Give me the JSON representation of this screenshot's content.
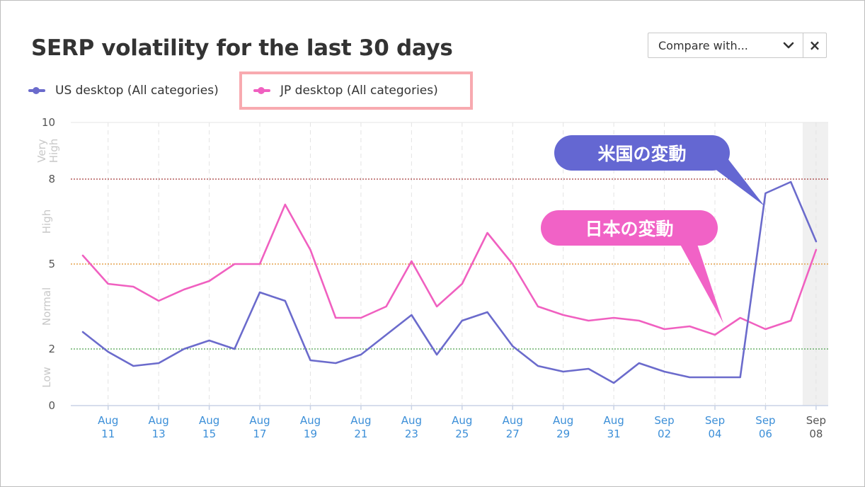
{
  "title": "SERP volatility for the last 30 days",
  "compare": {
    "placeholder": "Compare with...",
    "chevron_icon": "chevron-down-icon",
    "close_label": "×"
  },
  "legend": [
    {
      "label": "US desktop (All categories)",
      "color": "#6b6bcc"
    },
    {
      "label": "JP desktop (All categories)",
      "color": "#f060c0"
    }
  ],
  "annotations": [
    {
      "text": "米国の変動",
      "color": "#6467d2"
    },
    {
      "text": "日本の変動",
      "color": "#f162c6"
    }
  ],
  "chart_data": {
    "type": "line",
    "ylim": [
      0,
      10
    ],
    "yticks": [
      "0",
      "2",
      "5",
      "8",
      "10"
    ],
    "bands": [
      {
        "label": "Low",
        "from": 0,
        "to": 2
      },
      {
        "label": "Normal",
        "from": 2,
        "to": 5
      },
      {
        "label": "High",
        "from": 5,
        "to": 8
      },
      {
        "label": "Very High",
        "from": 8,
        "to": 10
      }
    ],
    "thresholds": [
      {
        "value": 8,
        "color": "#a33a3a"
      },
      {
        "value": 5,
        "color": "#e0902a"
      },
      {
        "value": 2,
        "color": "#4ea04e"
      }
    ],
    "dates": [
      "Aug 10",
      "Aug 11",
      "Aug 12",
      "Aug 13",
      "Aug 14",
      "Aug 15",
      "Aug 16",
      "Aug 17",
      "Aug 18",
      "Aug 19",
      "Aug 20",
      "Aug 21",
      "Aug 22",
      "Aug 23",
      "Aug 24",
      "Aug 25",
      "Aug 26",
      "Aug 27",
      "Aug 28",
      "Aug 29",
      "Aug 30",
      "Aug 31",
      "Sep 01",
      "Sep 02",
      "Sep 03",
      "Sep 04",
      "Sep 05",
      "Sep 06",
      "Sep 07",
      "Sep 08"
    ],
    "xtick_labels": [
      {
        "index": 1,
        "month": "Aug",
        "day": "11"
      },
      {
        "index": 3,
        "month": "Aug",
        "day": "13"
      },
      {
        "index": 5,
        "month": "Aug",
        "day": "15"
      },
      {
        "index": 7,
        "month": "Aug",
        "day": "17"
      },
      {
        "index": 9,
        "month": "Aug",
        "day": "19"
      },
      {
        "index": 11,
        "month": "Aug",
        "day": "21"
      },
      {
        "index": 13,
        "month": "Aug",
        "day": "23"
      },
      {
        "index": 15,
        "month": "Aug",
        "day": "25"
      },
      {
        "index": 17,
        "month": "Aug",
        "day": "27"
      },
      {
        "index": 19,
        "month": "Aug",
        "day": "29"
      },
      {
        "index": 21,
        "month": "Aug",
        "day": "31"
      },
      {
        "index": 23,
        "month": "Sep",
        "day": "02"
      },
      {
        "index": 25,
        "month": "Sep",
        "day": "04"
      },
      {
        "index": 27,
        "month": "Sep",
        "day": "06"
      },
      {
        "index": 29,
        "month": "Sep",
        "day": "08"
      }
    ],
    "highlight_index": 29,
    "series": [
      {
        "name": "US desktop (All categories)",
        "color": "#6b6bcc",
        "values": [
          2.6,
          1.9,
          1.4,
          1.5,
          2.0,
          2.3,
          2.0,
          4.0,
          3.7,
          1.6,
          1.5,
          1.8,
          2.5,
          3.2,
          1.8,
          3.0,
          3.3,
          2.1,
          1.4,
          1.2,
          1.3,
          0.8,
          1.5,
          1.2,
          1.0,
          1.0,
          1.0,
          7.5,
          7.9,
          5.8
        ]
      },
      {
        "name": "JP desktop (All categories)",
        "color": "#f060c0",
        "values": [
          5.3,
          4.3,
          4.2,
          3.7,
          4.1,
          4.4,
          5.0,
          5.0,
          7.1,
          5.5,
          3.1,
          3.1,
          3.5,
          5.1,
          3.5,
          4.3,
          6.1,
          5.0,
          3.5,
          3.2,
          3.0,
          3.1,
          3.0,
          2.7,
          2.8,
          2.5,
          3.1,
          2.7,
          3.0,
          5.5
        ]
      }
    ]
  }
}
